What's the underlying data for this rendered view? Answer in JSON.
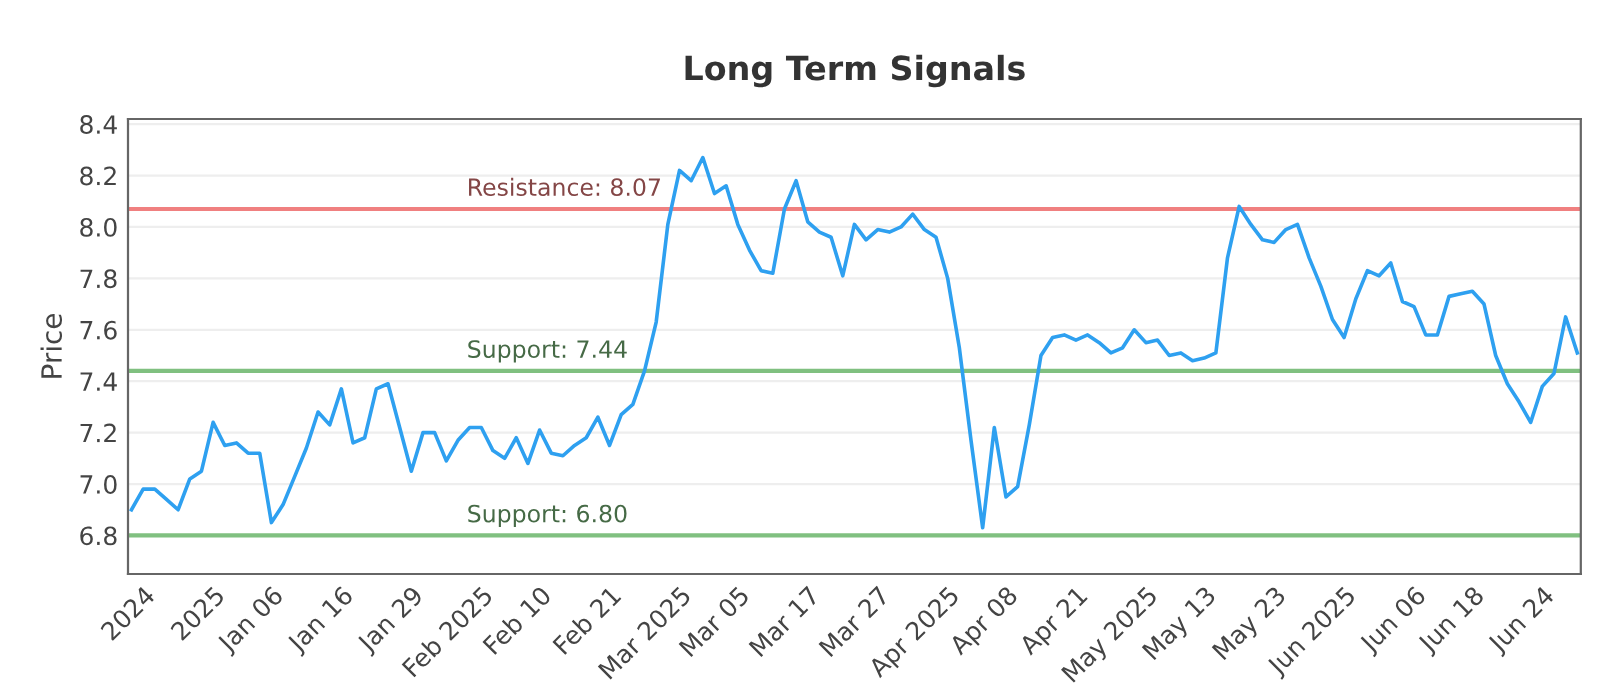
{
  "chart_data": {
    "type": "line",
    "title": "Long Term Signals",
    "ylabel": "Price",
    "categories": [
      null,
      "2024",
      null,
      null,
      null,
      null,
      null,
      "2025",
      null,
      null,
      null,
      null,
      "Jan 06",
      null,
      null,
      null,
      null,
      null,
      "Jan 16",
      null,
      null,
      null,
      null,
      null,
      "Jan 29",
      null,
      null,
      null,
      null,
      null,
      "Feb 2025",
      null,
      null,
      null,
      null,
      "Feb 10",
      null,
      null,
      null,
      null,
      null,
      "Feb 21",
      null,
      null,
      null,
      null,
      null,
      "Mar 2025",
      null,
      null,
      null,
      null,
      "Mar 05",
      null,
      null,
      null,
      null,
      null,
      "Mar 17",
      null,
      null,
      null,
      null,
      null,
      "Mar 27",
      null,
      null,
      null,
      null,
      null,
      "Apr 2025",
      null,
      null,
      null,
      null,
      "Apr 08",
      null,
      null,
      null,
      null,
      null,
      "Apr 21",
      null,
      null,
      null,
      null,
      null,
      "May 2025",
      null,
      null,
      null,
      null,
      "May 13",
      null,
      null,
      null,
      null,
      null,
      "May 23",
      null,
      null,
      null,
      null,
      null,
      "Jun 2025",
      null,
      null,
      null,
      null,
      null,
      "Jun 06",
      null,
      null,
      null,
      null,
      "Jun 18",
      null,
      null,
      null,
      null,
      null,
      "Jun 24",
      null,
      null,
      null
    ],
    "series": [
      {
        "color": "#2ea0f0",
        "values": [
          6.9,
          6.98,
          6.98,
          6.94,
          6.9,
          7.02,
          7.05,
          7.24,
          7.15,
          7.16,
          7.12,
          7.12,
          6.85,
          6.92,
          7.03,
          7.14,
          7.28,
          7.23,
          7.37,
          7.16,
          7.18,
          7.37,
          7.39,
          7.22,
          7.05,
          7.2,
          7.2,
          7.09,
          7.17,
          7.22,
          7.22,
          7.13,
          7.1,
          7.18,
          7.08,
          7.21,
          7.12,
          7.11,
          7.15,
          7.18,
          7.26,
          7.15,
          7.27,
          7.31,
          7.44,
          7.63,
          8.01,
          8.22,
          8.18,
          8.27,
          8.13,
          8.16,
          8.01,
          7.91,
          7.83,
          7.82,
          8.07,
          8.18,
          8.02,
          7.98,
          7.96,
          7.81,
          8.01,
          7.95,
          7.99,
          7.98,
          8.0,
          8.05,
          7.99,
          7.96,
          7.8,
          7.53,
          7.17,
          6.83,
          7.22,
          6.95,
          6.99,
          7.23,
          7.5,
          7.57,
          7.58,
          7.56,
          7.58,
          7.55,
          7.51,
          7.53,
          7.6,
          7.55,
          7.56,
          7.5,
          7.51,
          7.48,
          7.49,
          7.51,
          7.88,
          8.08,
          8.01,
          7.95,
          7.94,
          7.99,
          8.01,
          7.88,
          7.77,
          7.64,
          7.57,
          7.72,
          7.83,
          7.81,
          7.86,
          7.71,
          7.69,
          7.58,
          7.58,
          7.73,
          7.74,
          7.75,
          7.7,
          7.5,
          7.39,
          7.32,
          7.24,
          7.38,
          7.43,
          7.65,
          7.51
        ]
      }
    ],
    "ylim": [
      6.65,
      8.42
    ],
    "yticks": [
      {
        "value": 6.8,
        "label": "6.8"
      },
      {
        "value": 7.0,
        "label": "7.0"
      },
      {
        "value": 7.2,
        "label": "7.2"
      },
      {
        "value": 7.4,
        "label": "7.4"
      },
      {
        "value": 7.6,
        "label": "7.6"
      },
      {
        "value": 7.8,
        "label": "7.8"
      },
      {
        "value": 8.0,
        "label": "8.0"
      },
      {
        "value": 8.2,
        "label": "8.2"
      },
      {
        "value": 8.4,
        "label": "8.4"
      }
    ],
    "ref_lines": [
      {
        "axis": "y",
        "value": 8.07,
        "label": "Resistance: 8.07",
        "color": "#f08080"
      },
      {
        "axis": "y",
        "value": 7.44,
        "label": "Support: 7.44",
        "color": "#80c080"
      },
      {
        "axis": "y",
        "value": 6.8,
        "label": "Support: 6.80",
        "color": "#80c080"
      }
    ],
    "grid": "y",
    "marker": "none",
    "line_style": "solid"
  }
}
